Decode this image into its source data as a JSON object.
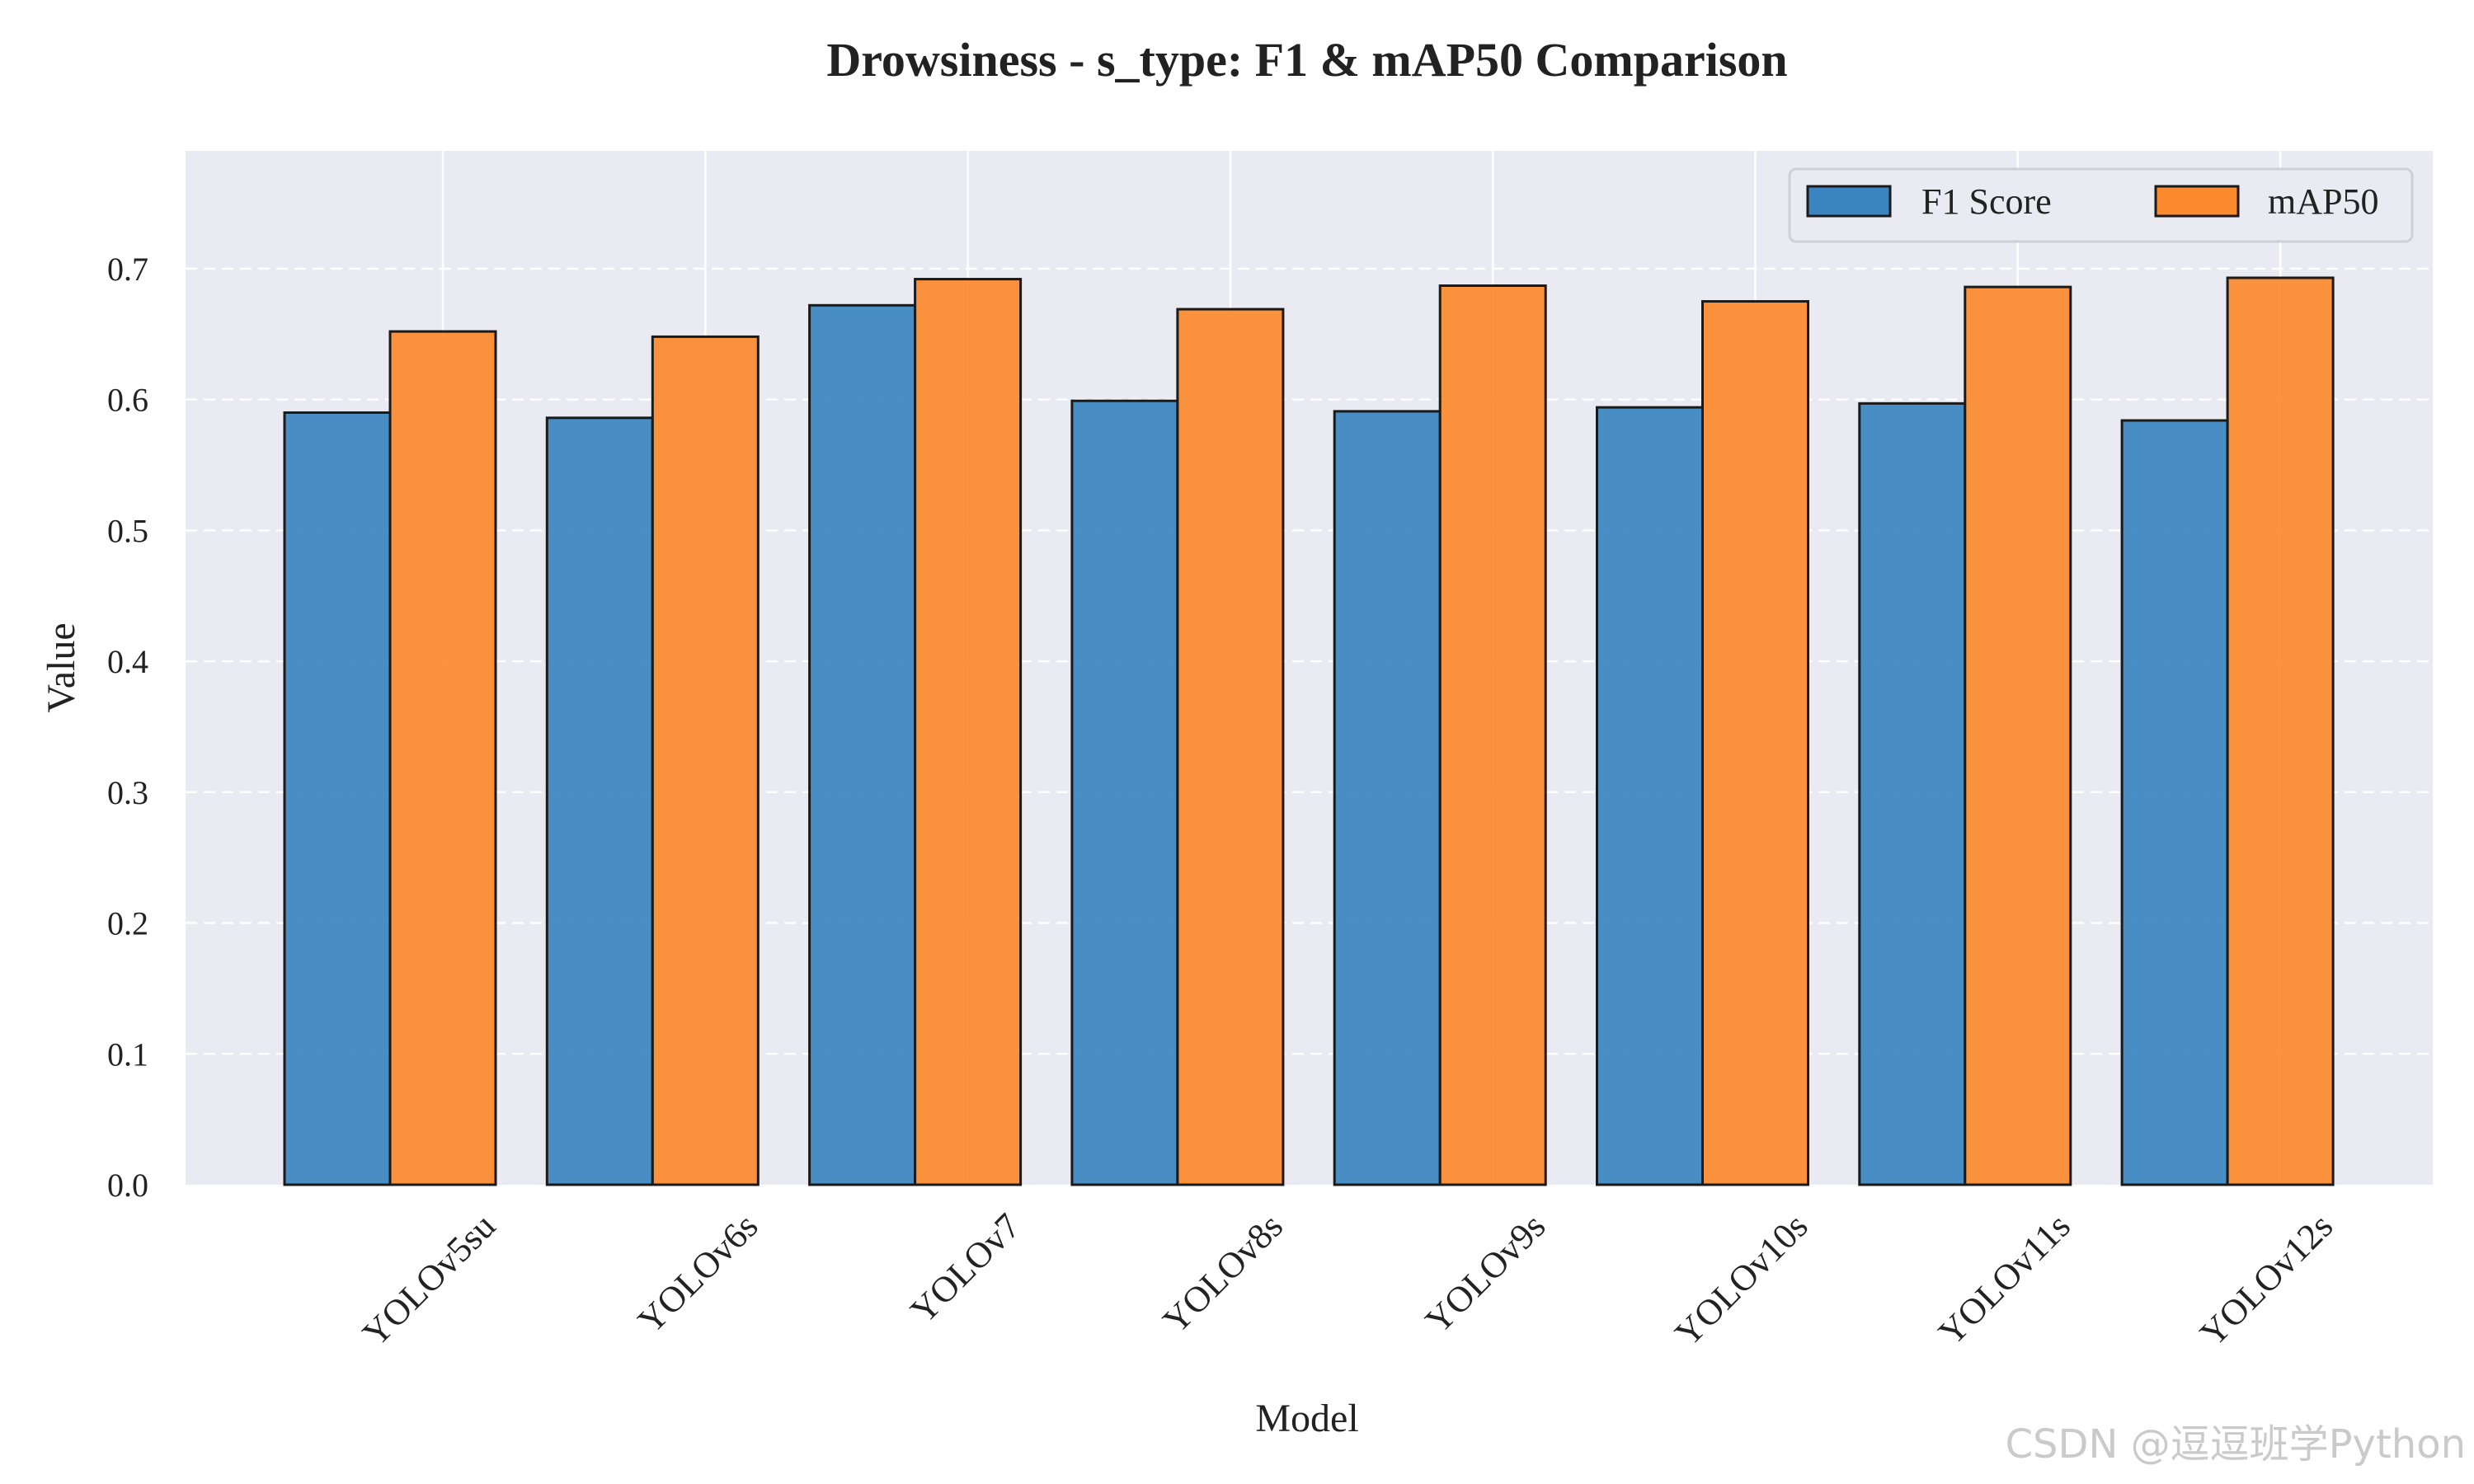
{
  "chart_data": {
    "type": "bar",
    "title": "Drowsiness - s_type: F1 & mAP50 Comparison",
    "xlabel": "Model",
    "ylabel": "Value",
    "categories": [
      "YOLOv5su",
      "YOLOv6s",
      "YOLOv7",
      "YOLOv8s",
      "YOLOv9s",
      "YOLOv10s",
      "YOLOv11s",
      "YOLOv12s"
    ],
    "series": [
      {
        "name": "F1 Score",
        "color": "#3a85c0",
        "values": [
          0.59,
          0.586,
          0.672,
          0.599,
          0.591,
          0.594,
          0.597,
          0.584
        ]
      },
      {
        "name": "mAP50",
        "color": "#fb8a2e",
        "values": [
          0.652,
          0.648,
          0.692,
          0.669,
          0.687,
          0.675,
          0.686,
          0.693
        ]
      }
    ],
    "ylim": [
      0,
      0.79
    ],
    "yticks": [
      "0.0",
      "0.1",
      "0.2",
      "0.3",
      "0.4",
      "0.5",
      "0.6",
      "0.7"
    ],
    "grid": true,
    "legend": "top-right",
    "background": "#eaeaf2"
  },
  "watermark": "CSDN @逗逗班学Python"
}
